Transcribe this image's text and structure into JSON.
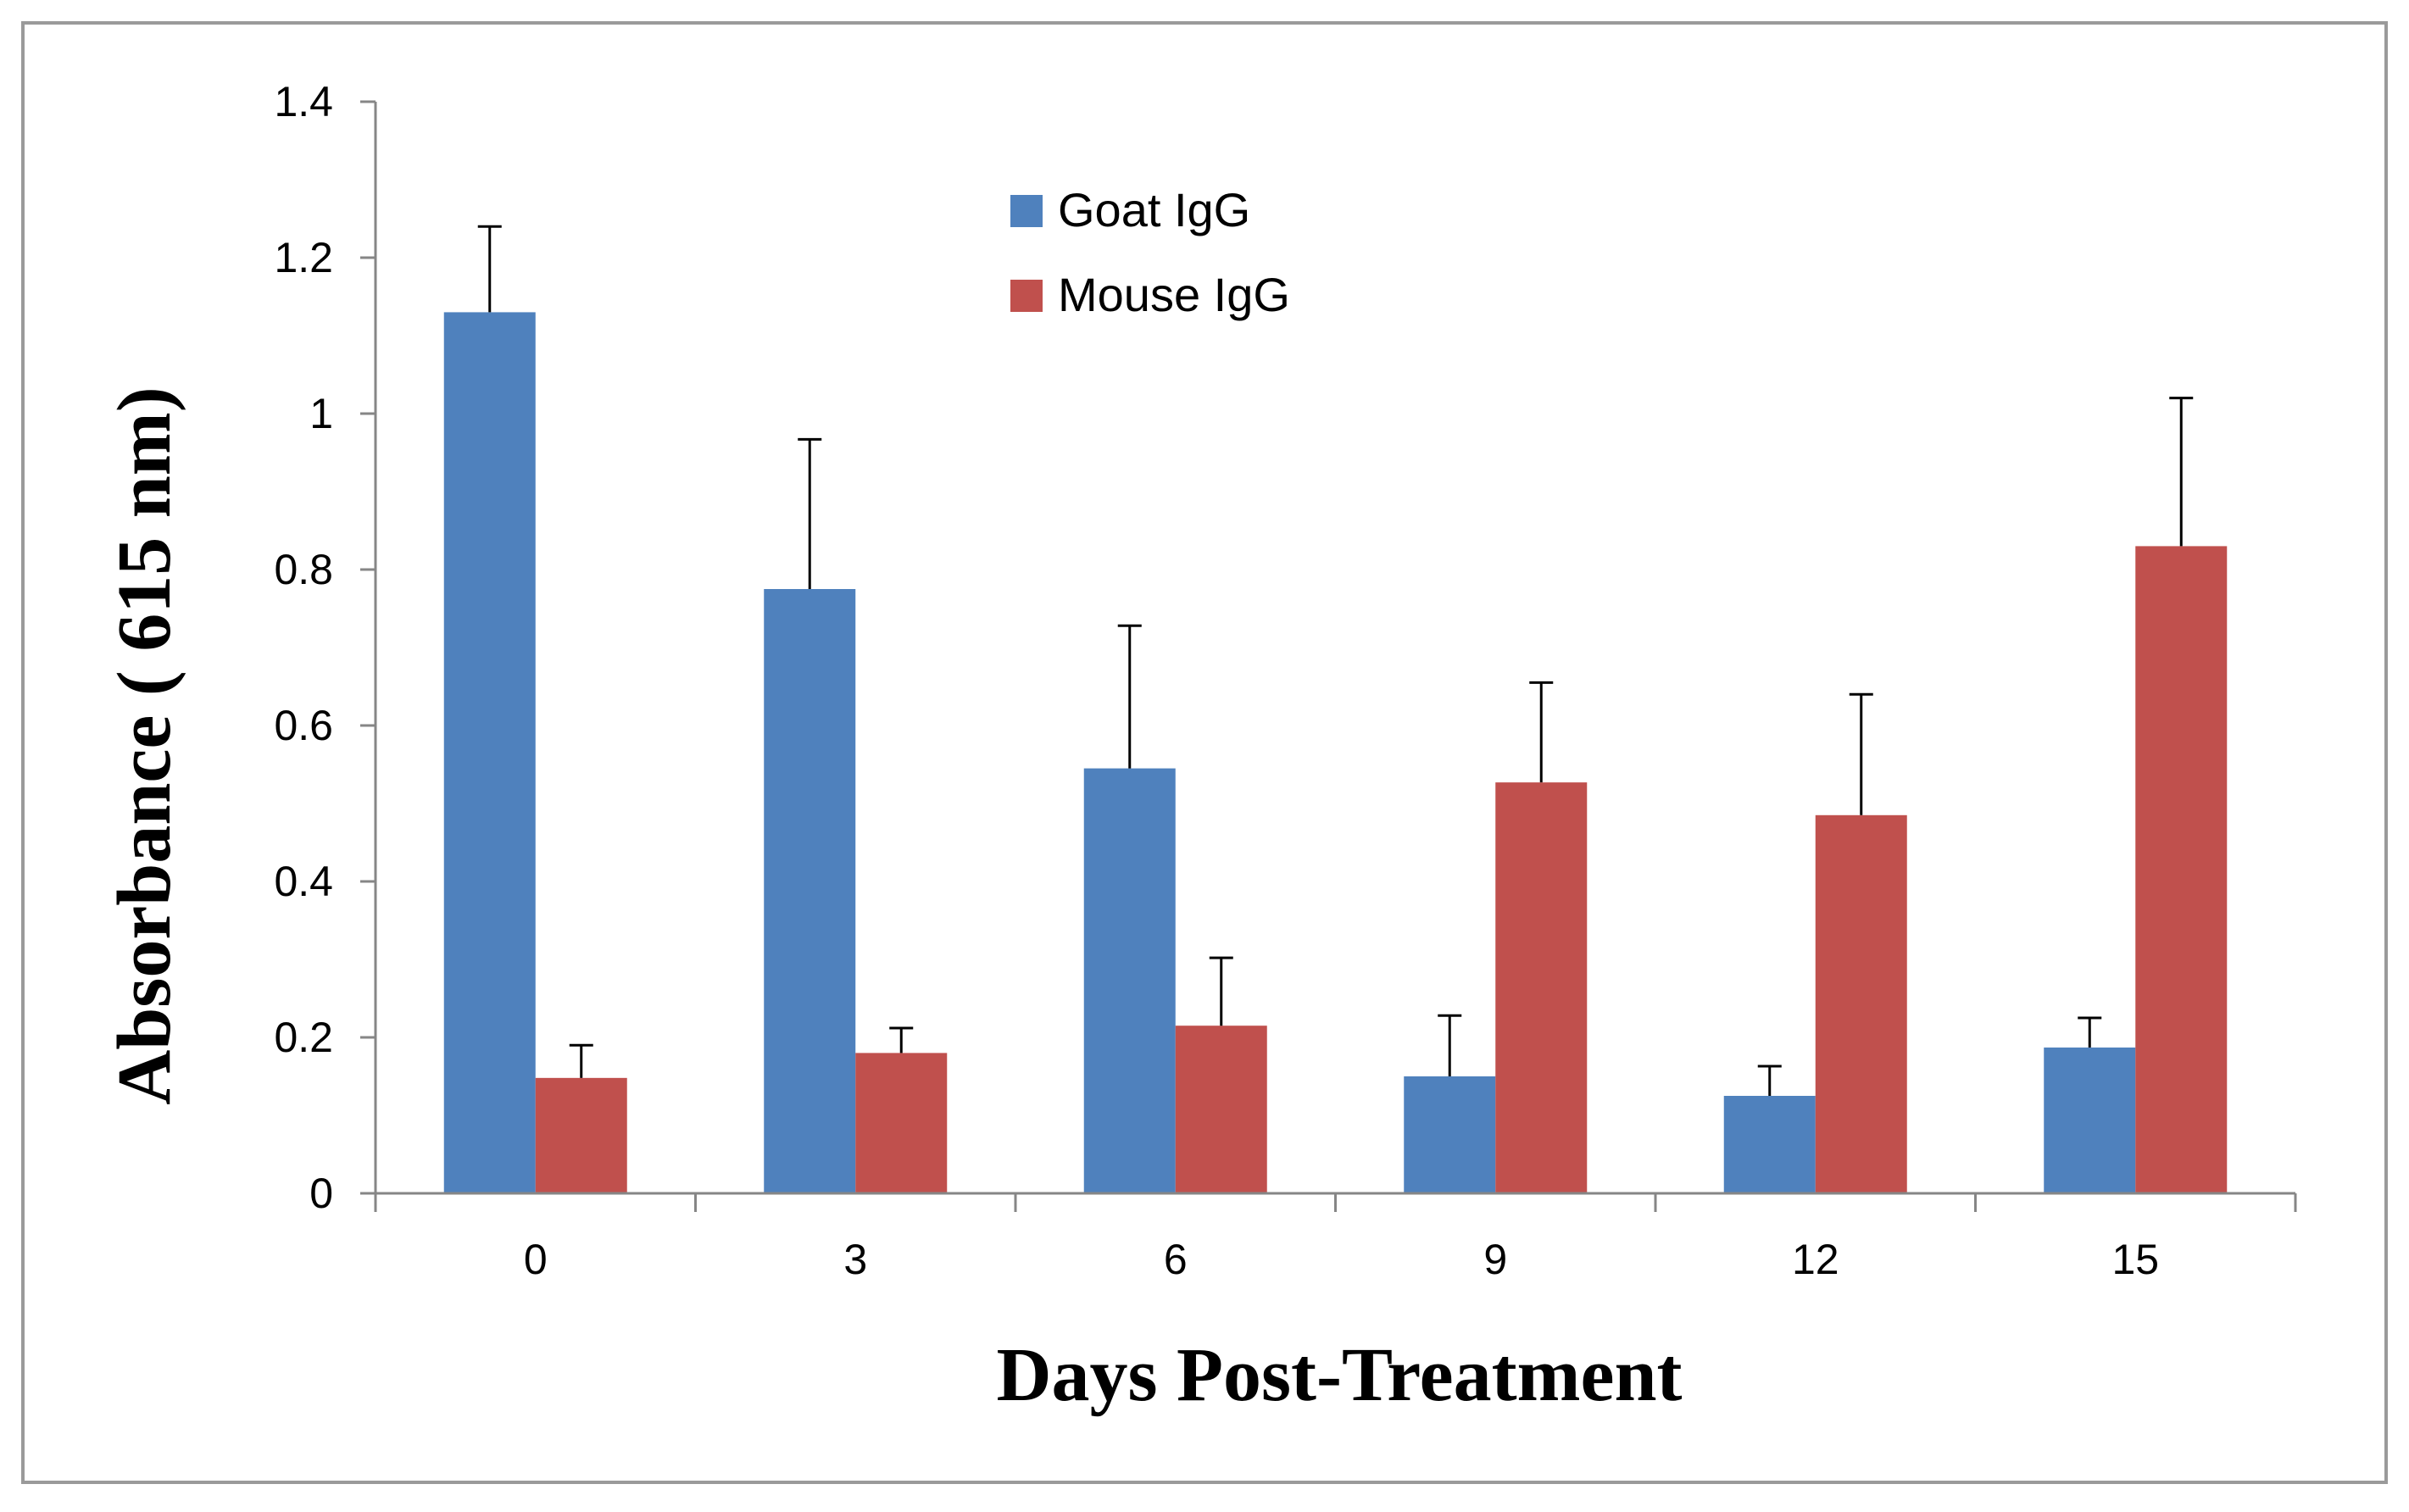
{
  "chart_data": {
    "type": "bar",
    "title": "",
    "xlabel": "Days Post-Treatment",
    "ylabel": "Absorbance ( 615 nm)",
    "categories": [
      "0",
      "3",
      "6",
      "9",
      "12",
      "15"
    ],
    "ylim": [
      0,
      1.4
    ],
    "yticks": [
      0,
      0.2,
      0.4,
      0.6,
      0.8,
      1,
      1.2,
      1.4
    ],
    "ytick_labels": [
      "0",
      "0.2",
      "0.4",
      "0.6",
      "0.8",
      "1",
      "1.2",
      "1.4"
    ],
    "grid": false,
    "legend_position": "top-center",
    "series": [
      {
        "name": "Goat IgG",
        "color": "#4f81bd",
        "values": [
          1.13,
          0.775,
          0.545,
          0.15,
          0.125,
          0.187
        ],
        "error": [
          0.11,
          0.192,
          0.183,
          0.078,
          0.038,
          0.038
        ]
      },
      {
        "name": "Mouse IgG",
        "color": "#c0504d",
        "values": [
          0.148,
          0.18,
          0.215,
          0.527,
          0.485,
          0.83
        ],
        "error": [
          0.042,
          0.032,
          0.087,
          0.128,
          0.155,
          0.19
        ]
      }
    ]
  }
}
